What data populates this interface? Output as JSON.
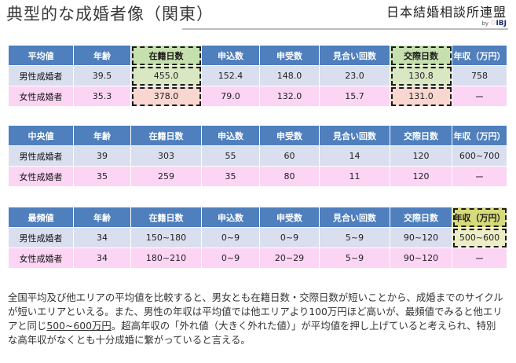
{
  "title": "典型的な成婚者像（関東）",
  "logo": {
    "main": "日本結婚相談所連盟",
    "by": "by",
    "heart": "♡",
    "brand": "IBJ"
  },
  "headers": [
    "年齢",
    "在籍日数",
    "申込数",
    "申受数",
    "見合い回数",
    "交際日数",
    "年収（万円）"
  ],
  "row_labels": {
    "male": "男性成婚者",
    "female": "女性成婚者"
  },
  "tables": [
    {
      "label": "平均値",
      "male": [
        "39.5",
        "455.0",
        "152.4",
        "148.0",
        "23.0",
        "130.8",
        "758"
      ],
      "female": [
        "35.3",
        "378.0",
        "79.0",
        "132.0",
        "15.7",
        "131.0",
        "ー"
      ]
    },
    {
      "label": "中央値",
      "male": [
        "39",
        "303",
        "55",
        "60",
        "14",
        "120",
        "600~700"
      ],
      "female": [
        "35",
        "259",
        "35",
        "80",
        "11",
        "120",
        "ー"
      ]
    },
    {
      "label": "最頻値",
      "male": [
        "34",
        "150~180",
        "0~9",
        "0~9",
        "5~9",
        "90~120",
        "500~600"
      ],
      "female": [
        "34",
        "180~210",
        "0~9",
        "20~29",
        "5~9",
        "90~120",
        "ー"
      ]
    }
  ],
  "note": {
    "part1": "全国平均及び他エリアの平均値を比較すると、男女とも在籍日数・交際日数が短いことから、成婚までのサイクルが短いエリアといえる。また、男性の年収は平均値では他エリアより100万円ほど高いが、最頻値でみると他エリアと同じ",
    "underlined": "500~600万円",
    "part2": "。超高年収の「外れ値（大きく外れた値）」が平均値を押し上げていると考えられ、特別な高年収がなくとも十分成婚に繋がっていると言える。"
  },
  "colors": {
    "header_blue": "#4f7fbd",
    "male_row": "#d9dfee",
    "female_row": "#fcd5f4",
    "highlight_green": "#c6dfae",
    "highlight_yellow": "#d7da7a"
  }
}
